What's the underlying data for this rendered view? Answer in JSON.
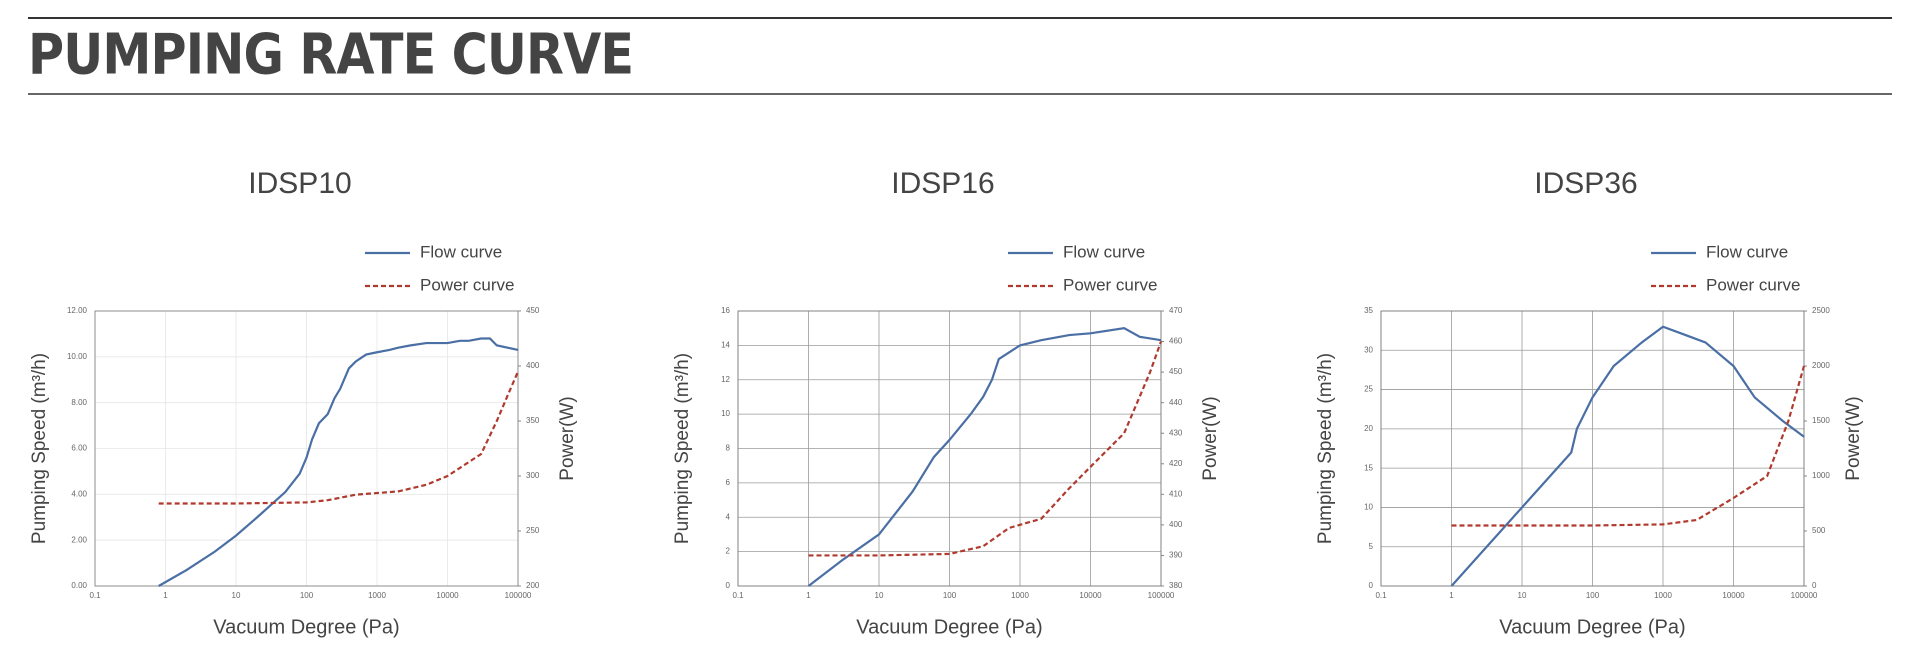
{
  "header": {
    "title": "PUMPING RATE CURVE"
  },
  "chart_data": [
    {
      "type": "line",
      "title": "IDSP10",
      "x_label": "Vacuum Degree (Pa)",
      "y_label": "Pumping Speed (m³/h)",
      "y2_label": "Power(W)",
      "xlog": true,
      "grid": true,
      "grid_color": "#e6e6e6",
      "xlim": [
        0.1,
        100000
      ],
      "xticks": [
        0.1,
        1,
        10,
        100,
        1000,
        10000,
        100000
      ],
      "ylim": [
        0,
        12
      ],
      "yticks": [
        {
          "value": 0,
          "label": "0.00"
        },
        {
          "value": 2,
          "label": "2.00"
        },
        {
          "value": 4,
          "label": "4.00"
        },
        {
          "value": 6,
          "label": "6.00"
        },
        {
          "value": 8,
          "label": "8.00"
        },
        {
          "value": 10,
          "label": "10.00"
        },
        {
          "value": 12,
          "label": "12.00"
        }
      ],
      "y2lim": [
        200,
        450
      ],
      "y2ticks": [
        200,
        250,
        300,
        350,
        400,
        450
      ],
      "series": [
        {
          "name": "Flow curve",
          "color": "#4a6fa5",
          "line_style": "solid",
          "x": [
            0.8,
            2,
            5,
            10,
            20,
            50,
            80,
            100,
            120,
            150,
            200,
            250,
            300,
            400,
            500,
            700,
            1000,
            1500,
            2000,
            3000,
            5000,
            10000,
            15000,
            20000,
            30000,
            40000,
            50000,
            100000
          ],
          "values": [
            0,
            0.7,
            1.5,
            2.2,
            3.0,
            4.1,
            4.9,
            5.6,
            6.4,
            7.1,
            7.5,
            8.2,
            8.6,
            9.5,
            9.8,
            10.1,
            10.2,
            10.3,
            10.4,
            10.5,
            10.6,
            10.6,
            10.7,
            10.7,
            10.8,
            10.8,
            10.5,
            10.3
          ]
        },
        {
          "name": "Power curve",
          "color": "#b03a2e",
          "line_style": "dashed",
          "axis": "y2",
          "x": [
            0.8,
            10,
            100,
            200,
            500,
            2000,
            5000,
            10000,
            30000,
            50000,
            70000,
            100000
          ],
          "values": [
            275,
            275,
            276,
            278,
            283,
            286,
            292,
            300,
            320,
            350,
            372,
            395
          ]
        }
      ]
    },
    {
      "type": "line",
      "title": "IDSP16",
      "x_label": "Vacuum Degree (Pa)",
      "y_label": "Pumping Speed (m³/h)",
      "y2_label": "Power(W)",
      "xlog": true,
      "grid": true,
      "grid_color": "#9a9a9a",
      "xlim": [
        0.1,
        100000
      ],
      "xticks": [
        0.1,
        1,
        10,
        100,
        1000,
        10000,
        100000
      ],
      "ylim": [
        0,
        16
      ],
      "yticks": [
        0,
        2,
        4,
        6,
        8,
        10,
        12,
        14,
        16
      ],
      "y2lim": [
        380,
        470
      ],
      "y2ticks": [
        380,
        390,
        400,
        410,
        420,
        430,
        440,
        450,
        460,
        470
      ],
      "series": [
        {
          "name": "Flow curve",
          "color": "#4a6fa5",
          "line_style": "solid",
          "x": [
            1,
            3,
            10,
            30,
            60,
            100,
            200,
            300,
            400,
            500,
            1000,
            2000,
            5000,
            10000,
            30000,
            50000,
            100000
          ],
          "values": [
            0,
            1.5,
            3,
            5.5,
            7.5,
            8.5,
            10,
            11,
            12,
            13.2,
            14,
            14.3,
            14.6,
            14.7,
            15,
            14.5,
            14.3
          ]
        },
        {
          "name": "Power curve",
          "color": "#b03a2e",
          "line_style": "dashed",
          "axis": "y2",
          "x": [
            1,
            10,
            100,
            300,
            700,
            2000,
            5000,
            10000,
            30000,
            70000,
            100000
          ],
          "values": [
            390,
            390,
            390.5,
            393,
            399,
            402,
            412,
            419,
            430,
            450,
            460
          ]
        }
      ]
    },
    {
      "type": "line",
      "title": "IDSP36",
      "x_label": "Vacuum Degree (Pa)",
      "y_label": "Pumping Speed (m³/h)",
      "y2_label": "Power(W)",
      "xlog": true,
      "grid": true,
      "grid_color": "#9a9a9a",
      "xlim": [
        0.1,
        100000
      ],
      "xticks": [
        0.1,
        1,
        10,
        100,
        1000,
        10000,
        100000
      ],
      "ylim": [
        0,
        35
      ],
      "yticks": [
        0,
        5,
        10,
        15,
        20,
        25,
        30,
        35
      ],
      "y2lim": [
        0,
        2500
      ],
      "y2ticks": [
        0,
        500,
        1000,
        1500,
        2000,
        2500
      ],
      "series": [
        {
          "name": "Flow curve",
          "color": "#4a6fa5",
          "line_style": "solid",
          "x": [
            1,
            10,
            50,
            60,
            100,
            200,
            500,
            1000,
            2000,
            4000,
            10000,
            20000,
            50000,
            100000
          ],
          "values": [
            0,
            10,
            17,
            20,
            24,
            28,
            31,
            33,
            32,
            31,
            28,
            24,
            21,
            19
          ]
        },
        {
          "name": "Power curve",
          "color": "#b03a2e",
          "line_style": "dashed",
          "axis": "y2",
          "x": [
            1,
            100,
            1000,
            3000,
            10000,
            30000,
            60000,
            100000
          ],
          "values": [
            550,
            550,
            560,
            600,
            800,
            1000,
            1500,
            2000
          ]
        }
      ]
    }
  ]
}
